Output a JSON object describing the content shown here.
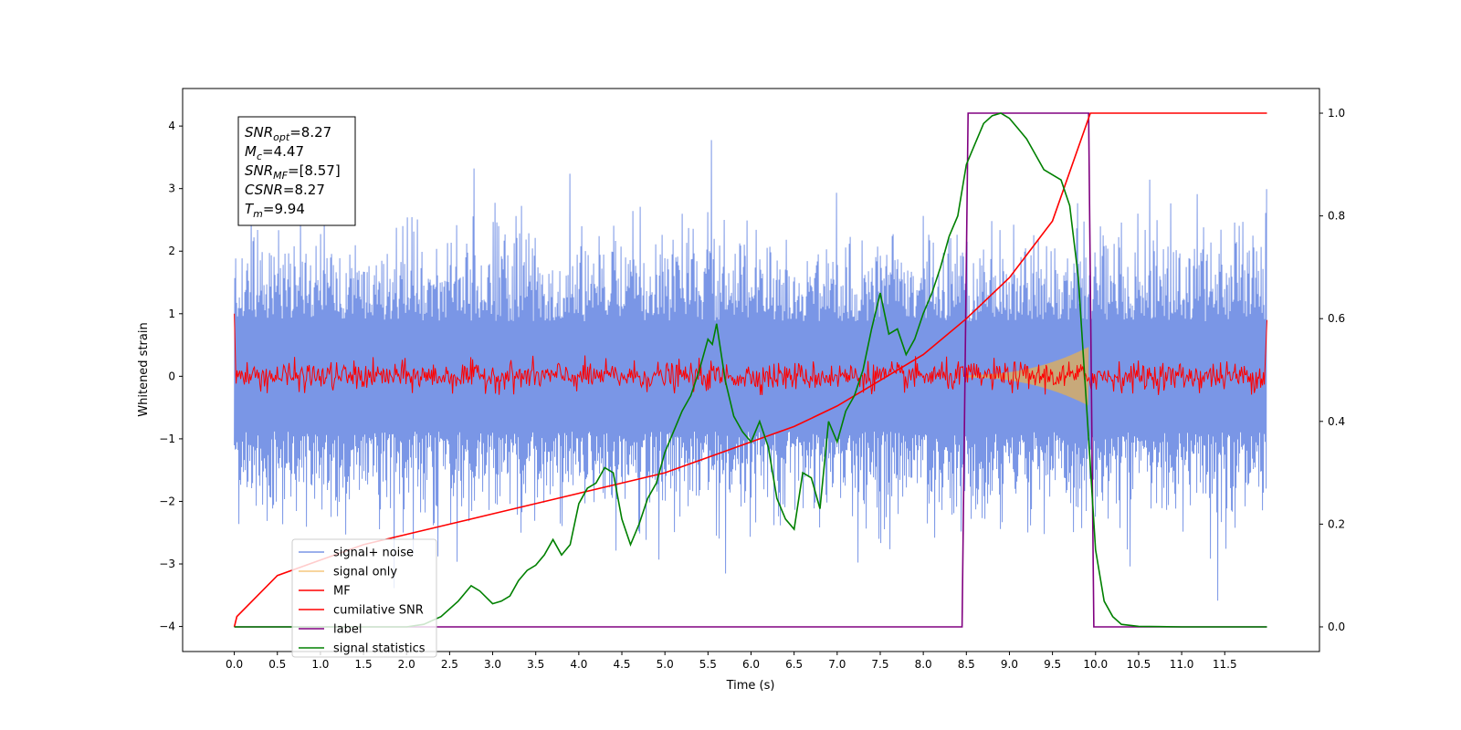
{
  "chart_data": {
    "type": "line",
    "xlabel": "Time (s)",
    "ylabel_left": "Whitened strain",
    "ylabel_right": "",
    "xlim": [
      -0.6,
      12.6
    ],
    "ylim_left": [
      -4.4,
      4.6
    ],
    "ylim_right": [
      -0.048,
      1.048
    ],
    "grid": false,
    "x_ticks": [
      "0.0",
      "0.5",
      "1.0",
      "1.5",
      "2.0",
      "2.5",
      "3.0",
      "3.5",
      "4.0",
      "4.5",
      "5.0",
      "5.5",
      "6.0",
      "6.5",
      "7.0",
      "7.5",
      "8.0",
      "8.5",
      "9.0",
      "9.5",
      "10.0",
      "10.5",
      "11.0",
      "11.5"
    ],
    "y_ticks_left": [
      "4",
      "3",
      "2",
      "1",
      "0",
      "−1",
      "−2",
      "−3",
      "−4"
    ],
    "y_ticks_right": [
      "1.0",
      "0.8",
      "0.6",
      "0.4",
      "0.2",
      "0.0"
    ],
    "annotation": {
      "lines": [
        {
          "base": "SNR",
          "sub": "opt",
          "rest": "=8.27"
        },
        {
          "base": "M",
          "sub": "c",
          "rest": "=4.47"
        },
        {
          "base": "SNR",
          "sub": "MF",
          "rest": "=[8.57]"
        },
        {
          "base": "CSNR",
          "sub": "",
          "rest": "=8.27"
        },
        {
          "base": "T",
          "sub": "m",
          "rest": "=9.94"
        }
      ]
    },
    "legend": {
      "placement": "lower-left",
      "entries": [
        {
          "label": "signal+ noise",
          "color": "#7a96e6"
        },
        {
          "label": "signal only",
          "color": "#f5c77e"
        },
        {
          "label": "MF",
          "color": "#ff0000"
        },
        {
          "label": "cumilative SNR",
          "color": "#ff0000"
        },
        {
          "label": "label",
          "color": "#800080"
        },
        {
          "label": "signal statistics",
          "color": "#008000"
        }
      ]
    },
    "series": [
      {
        "name": "signal+ noise",
        "axis": "left",
        "style": "noise",
        "x_range": [
          0,
          11.99
        ],
        "amplitude": 1.6
      },
      {
        "name": "signal only",
        "axis": "left",
        "style": "chirp",
        "x_range": [
          8.5,
          9.92
        ],
        "peak_amplitude": 0.45
      },
      {
        "name": "MF",
        "axis": "left",
        "style": "noise-small",
        "x_range": [
          0,
          11.99
        ],
        "amplitude": 0.25
      },
      {
        "name": "cumilative SNR",
        "axis": "right",
        "x": [
          0,
          0.03,
          0.5,
          1,
          1.5,
          2,
          2.5,
          3,
          3.5,
          4,
          4.5,
          5,
          5.5,
          6,
          6.5,
          7,
          7.5,
          8,
          8.5,
          9,
          9.5,
          9.94,
          11.99
        ],
        "y": [
          0,
          0.02,
          0.1,
          0.13,
          0.16,
          0.18,
          0.2,
          0.22,
          0.24,
          0.26,
          0.28,
          0.3,
          0.33,
          0.36,
          0.39,
          0.43,
          0.48,
          0.53,
          0.6,
          0.68,
          0.79,
          1.0,
          1.0
        ]
      },
      {
        "name": "label",
        "axis": "right",
        "x": [
          0,
          8.45,
          8.52,
          9.92,
          9.98,
          11.99
        ],
        "y": [
          0,
          0,
          1,
          1,
          0,
          0
        ]
      },
      {
        "name": "signal statistics",
        "axis": "right",
        "x": [
          0,
          2.0,
          2.2,
          2.4,
          2.6,
          2.75,
          2.85,
          3.0,
          3.1,
          3.2,
          3.3,
          3.4,
          3.5,
          3.6,
          3.7,
          3.8,
          3.9,
          4.0,
          4.1,
          4.2,
          4.3,
          4.4,
          4.5,
          4.6,
          4.7,
          4.8,
          4.9,
          5.0,
          5.1,
          5.2,
          5.3,
          5.4,
          5.5,
          5.55,
          5.6,
          5.7,
          5.8,
          5.9,
          6.0,
          6.1,
          6.2,
          6.3,
          6.4,
          6.5,
          6.6,
          6.7,
          6.8,
          6.9,
          7.0,
          7.1,
          7.2,
          7.3,
          7.4,
          7.5,
          7.6,
          7.7,
          7.8,
          7.9,
          8.0,
          8.1,
          8.2,
          8.3,
          8.4,
          8.5,
          8.6,
          8.7,
          8.8,
          8.9,
          9.0,
          9.1,
          9.2,
          9.3,
          9.4,
          9.5,
          9.6,
          9.7,
          9.8,
          9.9,
          10.0,
          10.1,
          10.2,
          10.3,
          10.5,
          11.0,
          11.99
        ],
        "y": [
          0,
          0.0,
          0.005,
          0.02,
          0.05,
          0.08,
          0.07,
          0.045,
          0.05,
          0.06,
          0.09,
          0.11,
          0.12,
          0.14,
          0.17,
          0.14,
          0.16,
          0.24,
          0.27,
          0.28,
          0.31,
          0.3,
          0.21,
          0.16,
          0.2,
          0.25,
          0.28,
          0.34,
          0.38,
          0.42,
          0.45,
          0.5,
          0.56,
          0.55,
          0.59,
          0.48,
          0.41,
          0.38,
          0.36,
          0.4,
          0.35,
          0.25,
          0.21,
          0.19,
          0.3,
          0.29,
          0.23,
          0.4,
          0.36,
          0.42,
          0.45,
          0.5,
          0.58,
          0.65,
          0.57,
          0.58,
          0.53,
          0.56,
          0.61,
          0.65,
          0.7,
          0.76,
          0.8,
          0.9,
          0.94,
          0.98,
          0.995,
          1.0,
          0.99,
          0.97,
          0.95,
          0.92,
          0.89,
          0.88,
          0.87,
          0.82,
          0.68,
          0.42,
          0.15,
          0.05,
          0.02,
          0.005,
          0.001,
          0.0,
          0.0
        ]
      }
    ]
  }
}
